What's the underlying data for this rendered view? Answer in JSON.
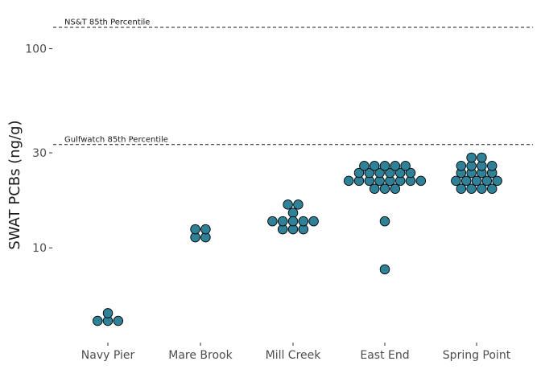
{
  "chart_data": {
    "type": "scatter",
    "subtype": "dotplot",
    "ylabel": "SWAT PCBs (ng/g)",
    "yscale": "log",
    "ylim": [
      3.5,
      160
    ],
    "yticks": [
      {
        "value": 10,
        "label": "10"
      },
      {
        "value": 30,
        "label": "30"
      },
      {
        "value": 100,
        "label": "100"
      }
    ],
    "categories": [
      "Navy Pier",
      "Mare Brook",
      "Mill Creek",
      "East End",
      "Spring Point"
    ],
    "grid": false,
    "dot_color": "#2e8197",
    "reference_lines": [
      {
        "label": "NS&T 85th Percentile",
        "value": 128
      },
      {
        "label": "Gulfwatch 85th Percentile",
        "value": 33
      }
    ],
    "series": [
      {
        "category": "Navy Pier",
        "values": [
          4.3,
          4.3,
          4.3,
          4.7
        ]
      },
      {
        "category": "Mare Brook",
        "values": [
          11.3,
          11.3,
          12.4,
          12.4
        ]
      },
      {
        "category": "Mill Creek",
        "values": [
          12.4,
          12.4,
          12.4,
          13.6,
          13.6,
          13.6,
          13.6,
          13.6,
          15.0,
          16.5,
          16.5
        ]
      },
      {
        "category": "East End",
        "values": [
          7.8,
          13.6,
          19.8,
          19.8,
          19.8,
          21.7,
          21.7,
          21.7,
          21.7,
          21.7,
          21.7,
          21.7,
          21.7,
          23.8,
          23.8,
          23.8,
          23.8,
          23.8,
          23.8,
          25.8,
          25.8,
          25.8,
          25.8,
          25.8
        ]
      },
      {
        "category": "Spring Point",
        "values": [
          19.8,
          19.8,
          19.8,
          19.8,
          21.7,
          21.7,
          21.7,
          21.7,
          21.7,
          23.8,
          23.8,
          23.8,
          23.8,
          25.8,
          25.8,
          25.8,
          25.8,
          28.4,
          28.4
        ]
      }
    ]
  }
}
